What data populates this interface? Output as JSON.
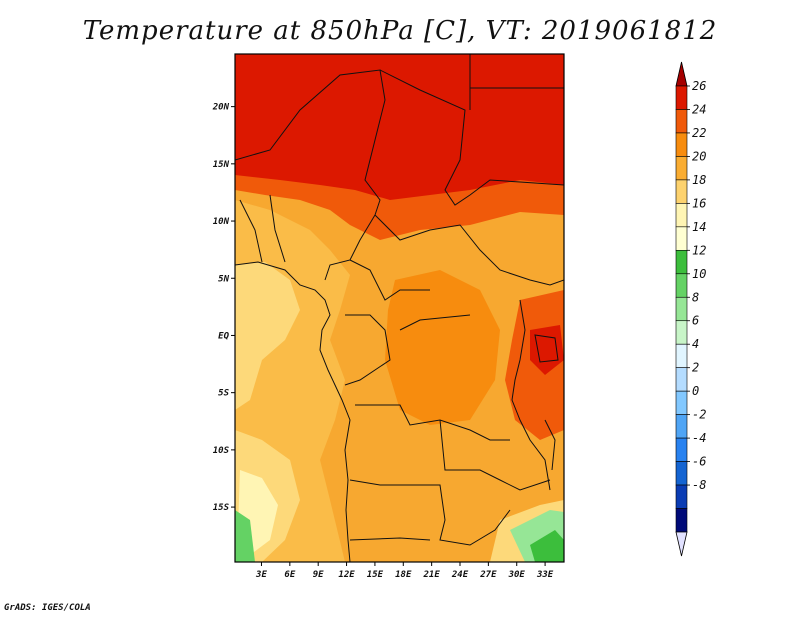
{
  "title": "Temperature at 850hPa [C], VT: 2019061812",
  "credit": "GrADS: IGES/COLA",
  "map": {
    "lat_ticks": [
      {
        "label": "20N",
        "lat": 20
      },
      {
        "label": "15N",
        "lat": 15
      },
      {
        "label": "10N",
        "lat": 10
      },
      {
        "label": "5N",
        "lat": 5
      },
      {
        "label": "EQ",
        "lat": 0
      },
      {
        "label": "5S",
        "lat": -5
      },
      {
        "label": "10S",
        "lat": -10
      },
      {
        "label": "15S",
        "lat": -15
      }
    ],
    "lon_ticks": [
      {
        "label": "3E",
        "lon": 3
      },
      {
        "label": "6E",
        "lon": 6
      },
      {
        "label": "9E",
        "lon": 9
      },
      {
        "label": "12E",
        "lon": 12
      },
      {
        "label": "15E",
        "lon": 15
      },
      {
        "label": "18E",
        "lon": 18
      },
      {
        "label": "21E",
        "lon": 21
      },
      {
        "label": "24E",
        "lon": 24
      },
      {
        "label": "27E",
        "lon": 27
      },
      {
        "label": "30E",
        "lon": 30
      },
      {
        "label": "33E",
        "lon": 33
      }
    ],
    "lon_range": [
      0.2,
      35
    ],
    "lat_range": [
      -19.8,
      24.6
    ]
  },
  "colorbar": {
    "levels": [
      "26",
      "24",
      "22",
      "20",
      "18",
      "16",
      "14",
      "12",
      "10",
      "8",
      "6",
      "4",
      "2",
      "0",
      "-2",
      "-4",
      "-6",
      "-8"
    ],
    "colors": [
      "#a50000",
      "#dc1800",
      "#f05a0a",
      "#f78c0e",
      "#faad32",
      "#fdd26e",
      "#fff5b4",
      "#ffffd2",
      "#3cbe3c",
      "#64d264",
      "#96e696",
      "#c8f5c8",
      "#e1f5ff",
      "#b4dcff",
      "#82c8ff",
      "#50a5f5",
      "#2882f0",
      "#1464d2",
      "#0a3cb4",
      "#000a78",
      "#e1e1ff"
    ]
  }
}
